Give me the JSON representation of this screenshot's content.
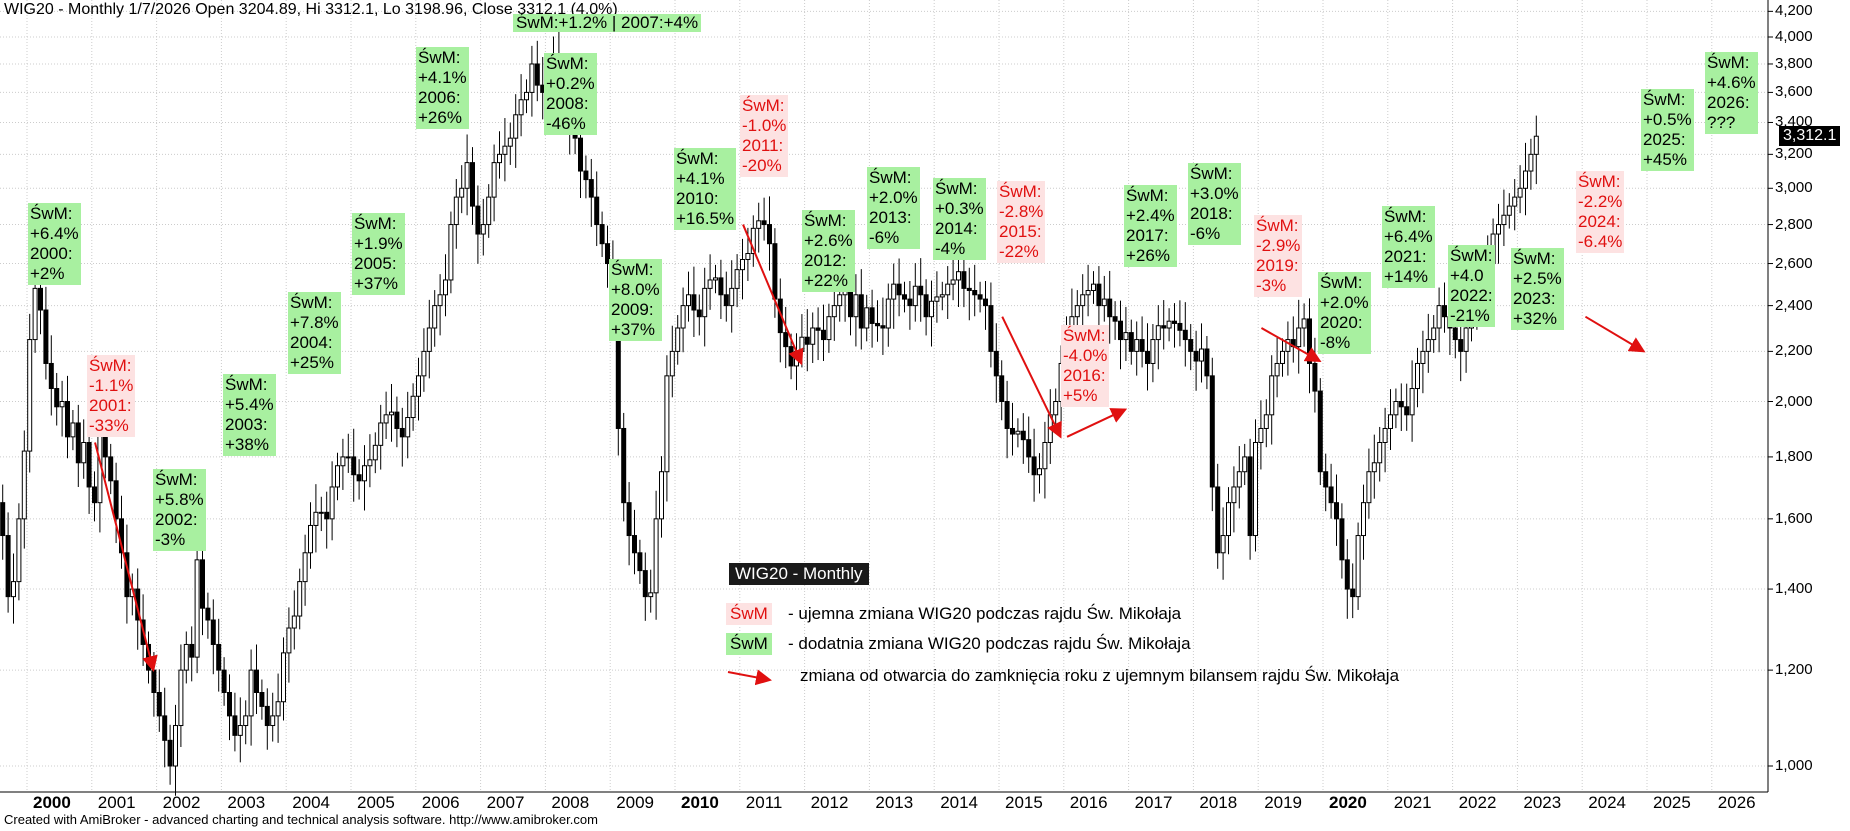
{
  "header": "WIG20 - Monthly 1/7/2026 Open 3204.89, Hi 3312.1, Lo 3198.96, Close 3312.1 (4.0%)",
  "top_note": "ŚwM:+1.2% | 2007:+4%",
  "footer": "Created with AmiBroker - advanced charting and technical analysis software. http://www.amibroker.com",
  "price_tag": "3,312.1",
  "legend": {
    "title": "WIG20 - Monthly",
    "neg_badge": "ŚwM",
    "neg_text": "- ujemna zmiana WIG20 podczas rajdu Św. Mikołaja",
    "pos_badge": "ŚwM",
    "pos_text": "- dodatnia zmiana WIG20 podczas rajdu Św. Mikołaja",
    "arrow_text": "zmiana od otwarcia do zamknięcia roku z ujemnym bilansem rajdu Św. Mikołaja"
  },
  "colors": {
    "positive_bg": "#a8f0a0",
    "negative_bg": "#fde2e2",
    "negative_text": "#e01010",
    "arrow": "#e01010",
    "grid": "#cccccc"
  },
  "annotations": [
    {
      "year": "2000",
      "text": "ŚwM:\n+6.4%\n2000:\n+2%",
      "sign": "pos"
    },
    {
      "year": "2001",
      "text": "ŚwM:\n-1.1%\n2001:\n-33%",
      "sign": "neg"
    },
    {
      "year": "2002",
      "text": "ŚwM:\n+5.8%\n2002:\n-3%",
      "sign": "pos"
    },
    {
      "year": "2003",
      "text": "ŚwM:\n+5.4%\n2003:\n+38%",
      "sign": "pos"
    },
    {
      "year": "2004",
      "text": "ŚwM:\n+7.8%\n2004:\n+25%",
      "sign": "pos"
    },
    {
      "year": "2005",
      "text": "ŚwM:\n+1.9%\n2005:\n+37%",
      "sign": "pos"
    },
    {
      "year": "2006",
      "text": "ŚwM:\n+4.1%\n2006:\n+26%",
      "sign": "pos"
    },
    {
      "year": "2008",
      "text": "ŚwM:\n+0.2%\n2008:\n-46%",
      "sign": "pos"
    },
    {
      "year": "2009",
      "text": "ŚwM:\n+8.0%\n2009:\n+37%",
      "sign": "pos"
    },
    {
      "year": "2010",
      "text": "ŚwM:\n+4.1%\n2010:\n+16.5%",
      "sign": "pos"
    },
    {
      "year": "2011",
      "text": "ŚwM:\n-1.0%\n2011:\n-20%",
      "sign": "neg"
    },
    {
      "year": "2012",
      "text": "ŚwM:\n+2.6%\n2012:\n+22%",
      "sign": "pos"
    },
    {
      "year": "2013",
      "text": "ŚwM:\n+2.0%\n2013:\n-6%",
      "sign": "pos"
    },
    {
      "year": "2014",
      "text": "ŚwM:\n+0.3%\n2014:\n-4%",
      "sign": "pos"
    },
    {
      "year": "2015",
      "text": "ŚwM:\n-2.8%\n2015:\n-22%",
      "sign": "neg"
    },
    {
      "year": "2016",
      "text": "ŚwM:\n-4.0%\n2016:\n+5%",
      "sign": "neg"
    },
    {
      "year": "2017",
      "text": "ŚwM:\n+2.4%\n2017:\n+26%",
      "sign": "pos"
    },
    {
      "year": "2018",
      "text": "ŚwM:\n+3.0%\n2018:\n-6%",
      "sign": "pos"
    },
    {
      "year": "2019",
      "text": "ŚwM:\n-2.9%\n2019:\n-3%",
      "sign": "neg"
    },
    {
      "year": "2020",
      "text": "ŚwM:\n+2.0%\n2020:\n-8%",
      "sign": "pos"
    },
    {
      "year": "2021",
      "text": "ŚwM:\n+6.4%\n2021:\n+14%",
      "sign": "pos"
    },
    {
      "year": "2022",
      "text": "ŚwM:\n+4.0\n2022:\n-21%",
      "sign": "pos"
    },
    {
      "year": "2023",
      "text": "ŚwM:\n+2.5%\n2023:\n+32%",
      "sign": "pos"
    },
    {
      "year": "2024",
      "text": "ŚwM:\n-2.2%\n2024:\n-6.4%",
      "sign": "neg"
    },
    {
      "year": "2025",
      "text": "ŚwM:\n+0.5%\n2025:\n+45%",
      "sign": "pos"
    },
    {
      "year": "2026",
      "text": "ŚwM:\n+4.6%\n2026:\n???",
      "sign": "pos"
    }
  ],
  "chart_data": {
    "type": "candlestick",
    "title": "WIG20 - Monthly",
    "y_scale": "log",
    "ylim": [
      950,
      4250
    ],
    "y_ticks": [
      1000,
      1200,
      1400,
      1600,
      1800,
      2000,
      2200,
      2400,
      2600,
      2800,
      3000,
      3200,
      3400,
      3600,
      3800,
      4000,
      4200
    ],
    "y_tick_labels": [
      "1,000",
      "1,200",
      "1,400",
      "1,600",
      "1,800",
      "2,000",
      "2,200",
      "2,400",
      "2,600",
      "2,800",
      "3,000",
      "3,200",
      "3,400",
      "3,600",
      "3,800",
      "4,000",
      "4,200"
    ],
    "x_labels": [
      "2000",
      "2001",
      "2002",
      "2003",
      "2004",
      "2005",
      "2006",
      "2007",
      "2008",
      "2009",
      "2010",
      "2011",
      "2012",
      "2013",
      "2014",
      "2015",
      "2016",
      "2017",
      "2018",
      "2019",
      "2020",
      "2021",
      "2022",
      "2023",
      "2024",
      "2025",
      "2026"
    ],
    "x_bold": [
      "2000",
      "2010",
      "2020"
    ],
    "grid": true,
    "monthly_close": {
      "start": "1999-07",
      "values": [
        1650,
        1550,
        1380,
        1420,
        1600,
        1820,
        2250,
        2480,
        2380,
        2150,
        2050,
        1980,
        2000,
        1870,
        1920,
        1780,
        1850,
        1700,
        1650,
        1880,
        1800,
        1720,
        1600,
        1500,
        1380,
        1400,
        1320,
        1260,
        1200,
        1150,
        1100,
        1050,
        1000,
        1080,
        1200,
        1260,
        1230,
        1480,
        1350,
        1320,
        1260,
        1200,
        1150,
        1100,
        1060,
        1080,
        1100,
        1200,
        1150,
        1120,
        1080,
        1100,
        1130,
        1240,
        1300,
        1330,
        1420,
        1500,
        1580,
        1620,
        1620,
        1600,
        1700,
        1770,
        1800,
        1800,
        1740,
        1720,
        1770,
        1790,
        1840,
        1920,
        1950,
        1960,
        1900,
        1870,
        1940,
        2020,
        2100,
        2200,
        2300,
        2400,
        2450,
        2520,
        2800,
        2950,
        3000,
        3150,
        2900,
        2750,
        2800,
        2950,
        3150,
        3200,
        3250,
        3300,
        3450,
        3550,
        3600,
        3800,
        3650,
        3600,
        3700,
        3850,
        3750,
        3550,
        3350,
        3300,
        3100,
        3050,
        2950,
        2800,
        2700,
        2600,
        2450,
        1900,
        1650,
        1550,
        1500,
        1450,
        1380,
        1390,
        1600,
        1750,
        2100,
        2200,
        2300,
        2400,
        2450,
        2380,
        2350,
        2480,
        2520,
        2530,
        2450,
        2400,
        2480,
        2570,
        2620,
        2650,
        2780,
        2820,
        2800,
        2700,
        2430,
        2280,
        2220,
        2140,
        2200,
        2260,
        2230,
        2300,
        2290,
        2250,
        2350,
        2400,
        2450,
        2550,
        2350,
        2450,
        2300,
        2390,
        2320,
        2310,
        2300,
        2430,
        2500,
        2450,
        2430,
        2400,
        2490,
        2450,
        2350,
        2420,
        2440,
        2450,
        2500,
        2520,
        2560,
        2480,
        2470,
        2450,
        2430,
        2400,
        2200,
        2100,
        2000,
        1900,
        1880,
        1890,
        1860,
        1800,
        1740,
        1760,
        1850,
        1950,
        2000,
        2150,
        2250,
        2350,
        2400,
        2450,
        2470,
        2500,
        2400,
        2430,
        2350,
        2330,
        2250,
        2280,
        2200,
        2250,
        2200,
        2150,
        2250,
        2310,
        2300,
        2330,
        2320,
        2290,
        2250,
        2200,
        2160,
        2210,
        2100,
        1700,
        1500,
        1550,
        1650,
        1700,
        1750,
        1800,
        1550,
        1850,
        1900,
        1950,
        2100,
        2150,
        2200,
        2250,
        2220,
        2300,
        2340,
        2150,
        2040,
        1750,
        1700,
        1650,
        1600,
        1480,
        1400,
        1380,
        1550,
        1650,
        1750,
        1780,
        1850,
        1900,
        1950,
        2000,
        1980,
        1950,
        2050,
        2150,
        2200,
        2250,
        2300,
        2400,
        2350,
        2300,
        2250,
        2200,
        2300,
        2400,
        2500,
        2550,
        2600,
        2750,
        2800,
        2850,
        2900,
        2950,
        3000,
        3100,
        3200,
        3312.1
      ]
    }
  }
}
